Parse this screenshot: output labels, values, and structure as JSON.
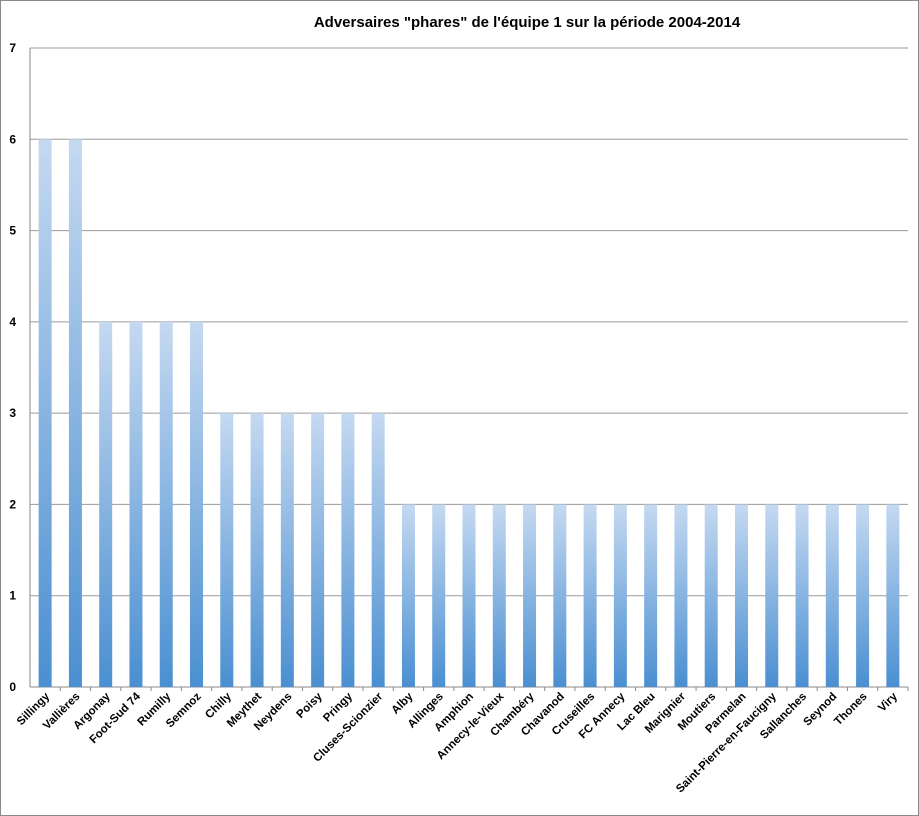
{
  "chart_data": {
    "type": "bar",
    "title": "Adversaires \"phares\" de l'équipe 1 sur la période 2004-2014",
    "xlabel": "",
    "ylabel": "",
    "ylim": [
      0,
      7
    ],
    "yticks": [
      0,
      1,
      2,
      3,
      4,
      5,
      6,
      7
    ],
    "grid": true,
    "legend": "none",
    "bar_color_top": "#c5d9f1",
    "bar_color_bottom": "#4a8fd1",
    "categories": [
      "Sillingy",
      "Vallières",
      "Argonay",
      "Foot-Sud 74",
      "Rumilly",
      "Semnoz",
      "Chilly",
      "Meythet",
      "Neydens",
      "Poisy",
      "Pringy",
      "Cluses-Scionzier",
      "Alby",
      "Allinges",
      "Amphion",
      "Annecy-le-Vieux",
      "Chambéry",
      "Chavanod",
      "Cruseilles",
      "FC Annecy",
      "Lac Bleu",
      "Marignier",
      "Moutiers",
      "Parmelan",
      "Saint-Pierre-en-Faucigny",
      "Sallanches",
      "Seynod",
      "Thones",
      "Viry"
    ],
    "values": [
      6,
      6,
      4,
      4,
      4,
      4,
      3,
      3,
      3,
      3,
      3,
      3,
      2,
      2,
      2,
      2,
      2,
      2,
      2,
      2,
      2,
      2,
      2,
      2,
      2,
      2,
      2,
      2,
      2
    ]
  }
}
